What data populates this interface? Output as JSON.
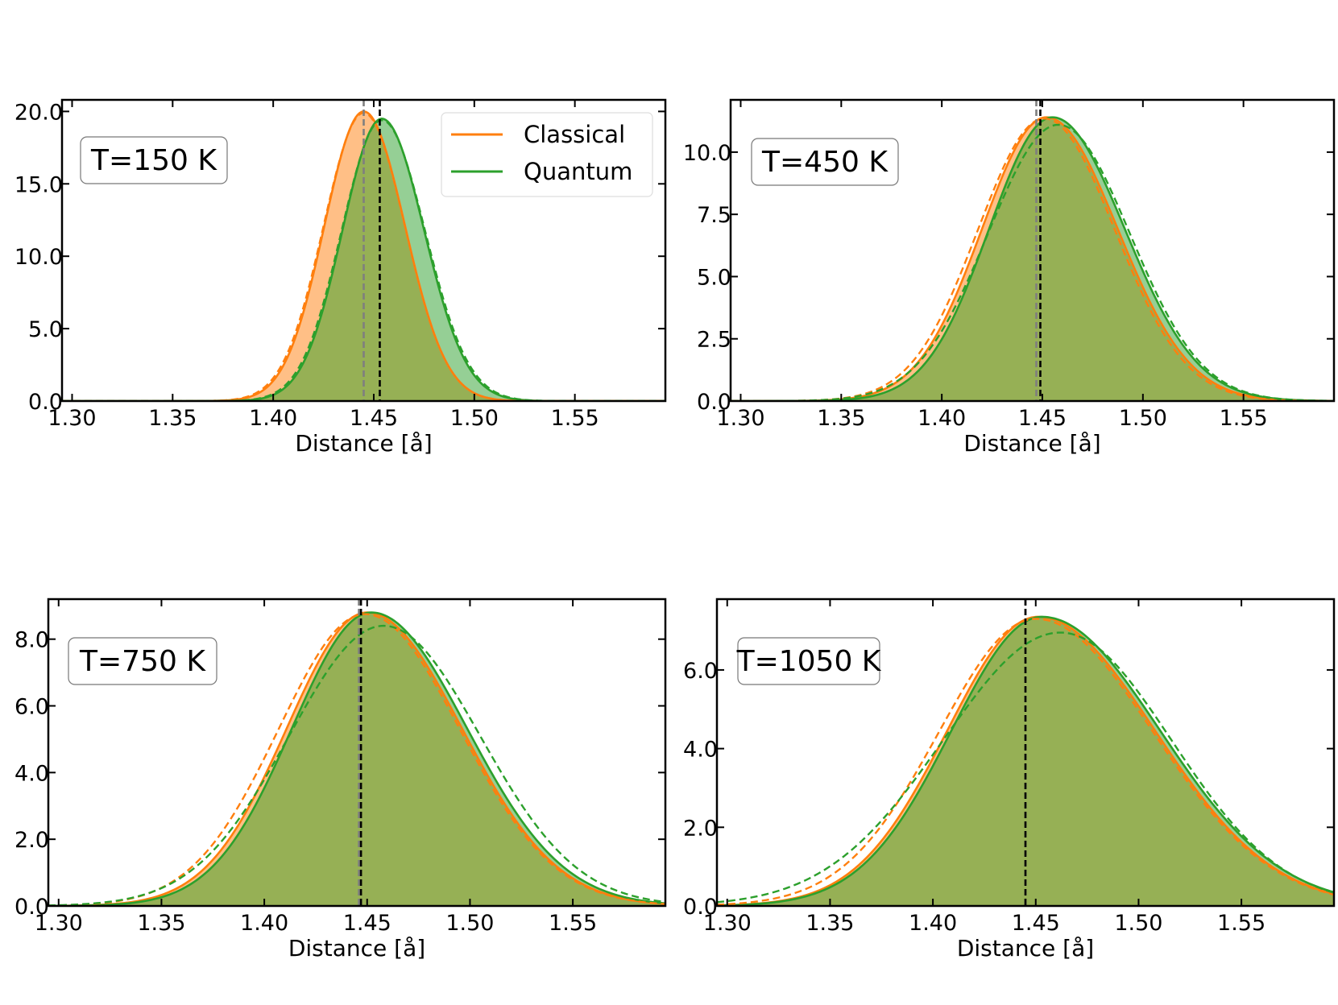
{
  "chart_data": [
    {
      "type": "area",
      "annotation": "T=150 K",
      "xlabel": "Distance [å]",
      "ylabel": "",
      "xlim": [
        1.295,
        1.595
      ],
      "ylim": [
        0,
        20.8
      ],
      "xticks": [
        1.3,
        1.35,
        1.4,
        1.45,
        1.5,
        1.55
      ],
      "xtick_labels": [
        "1.30",
        "1.35",
        "1.40",
        "1.45",
        "1.50",
        "1.55"
      ],
      "yticks": [
        0,
        5,
        10,
        15,
        20
      ],
      "ytick_labels": [
        "0.0",
        "5.0",
        "10.0",
        "15.0",
        "20.0"
      ],
      "legend": {
        "placement": "top-right",
        "entries": [
          "Classical",
          "Quantum"
        ]
      },
      "series": [
        {
          "name": "Classical",
          "peak": 20.0,
          "mode": 1.445,
          "sigma_left": 0.0195,
          "sigma_right": 0.0205,
          "vline": 1.445
        },
        {
          "name": "Quantum",
          "peak": 19.5,
          "mode": 1.454,
          "sigma_left": 0.0195,
          "sigma_right": 0.021,
          "vline": 1.453
        }
      ],
      "fits": [
        {
          "series": "Classical",
          "peak": 19.9,
          "mode": 1.445,
          "sigma_left": 0.02,
          "sigma_right": 0.0205
        },
        {
          "series": "Quantum",
          "peak": 19.4,
          "mode": 1.454,
          "sigma_left": 0.02,
          "sigma_right": 0.0215
        }
      ]
    },
    {
      "type": "area",
      "annotation": "T=450 K",
      "xlabel": "Distance [å]",
      "ylabel": "",
      "xlim": [
        1.295,
        1.595
      ],
      "ylim": [
        0,
        12.1
      ],
      "xticks": [
        1.3,
        1.35,
        1.4,
        1.45,
        1.5,
        1.55
      ],
      "xtick_labels": [
        "1.30",
        "1.35",
        "1.40",
        "1.45",
        "1.50",
        "1.55"
      ],
      "yticks": [
        0,
        2.5,
        5,
        7.5,
        10
      ],
      "ytick_labels": [
        "0.0",
        "2.5",
        "5.0",
        "7.5",
        "10.0"
      ],
      "series": [
        {
          "name": "Classical",
          "peak": 11.4,
          "mode": 1.452,
          "sigma_left": 0.032,
          "sigma_right": 0.0355,
          "vline": 1.447
        },
        {
          "name": "Quantum",
          "peak": 11.4,
          "mode": 1.455,
          "sigma_left": 0.0315,
          "sigma_right": 0.036,
          "vline": 1.449
        }
      ],
      "fits": [
        {
          "series": "Classical",
          "peak": 11.35,
          "mode": 1.451,
          "sigma_left": 0.033,
          "sigma_right": 0.035
        },
        {
          "series": "Quantum",
          "peak": 11.1,
          "mode": 1.458,
          "sigma_left": 0.035,
          "sigma_right": 0.0355
        }
      ]
    },
    {
      "type": "area",
      "annotation": "T=750 K",
      "xlabel": "Distance [å]",
      "ylabel": "",
      "xlim": [
        1.295,
        1.595
      ],
      "ylim": [
        0,
        9.2
      ],
      "xticks": [
        1.3,
        1.35,
        1.4,
        1.45,
        1.5,
        1.55
      ],
      "xtick_labels": [
        "1.30",
        "1.35",
        "1.40",
        "1.45",
        "1.50",
        "1.55"
      ],
      "yticks": [
        0,
        2,
        4,
        6,
        8
      ],
      "ytick_labels": [
        "0.0",
        "2.0",
        "4.0",
        "6.0",
        "8.0"
      ],
      "series": [
        {
          "name": "Classical",
          "peak": 8.8,
          "mode": 1.45,
          "sigma_left": 0.039,
          "sigma_right": 0.046,
          "vline": 1.446
        },
        {
          "name": "Quantum",
          "peak": 8.8,
          "mode": 1.452,
          "sigma_left": 0.0385,
          "sigma_right": 0.0465,
          "vline": 1.447
        }
      ],
      "fits": [
        {
          "series": "Classical",
          "peak": 8.75,
          "mode": 1.449,
          "sigma_left": 0.042,
          "sigma_right": 0.046
        },
        {
          "series": "Quantum",
          "peak": 8.4,
          "mode": 1.458,
          "sigma_left": 0.046,
          "sigma_right": 0.047
        }
      ]
    },
    {
      "type": "area",
      "annotation": "T=1050 K",
      "xlabel": "Distance [å]",
      "ylabel": "",
      "xlim": [
        1.295,
        1.595
      ],
      "ylim": [
        0,
        7.8
      ],
      "xticks": [
        1.3,
        1.35,
        1.4,
        1.45,
        1.5,
        1.55
      ],
      "xtick_labels": [
        "1.30",
        "1.35",
        "1.40",
        "1.45",
        "1.50",
        "1.55"
      ],
      "yticks": [
        0,
        2,
        4,
        6
      ],
      "ytick_labels": [
        "0.0",
        "2.0",
        "4.0",
        "6.0"
      ],
      "series": [
        {
          "name": "Classical",
          "peak": 7.35,
          "mode": 1.451,
          "sigma_left": 0.044,
          "sigma_right": 0.057,
          "vline": 1.445
        },
        {
          "name": "Quantum",
          "peak": 7.35,
          "mode": 1.453,
          "sigma_left": 0.044,
          "sigma_right": 0.0575,
          "vline": 1.445
        }
      ],
      "fits": [
        {
          "series": "Classical",
          "peak": 7.3,
          "mode": 1.45,
          "sigma_left": 0.047,
          "sigma_right": 0.057
        },
        {
          "series": "Quantum",
          "peak": 6.95,
          "mode": 1.462,
          "sigma_left": 0.057,
          "sigma_right": 0.054
        }
      ]
    }
  ],
  "colors": {
    "classical": "#ff7f0e",
    "quantum": "#2ca02c",
    "overlap_fill": "#96b055",
    "vline_classical": "#7f7f7f",
    "vline_quantum": "#000000"
  }
}
